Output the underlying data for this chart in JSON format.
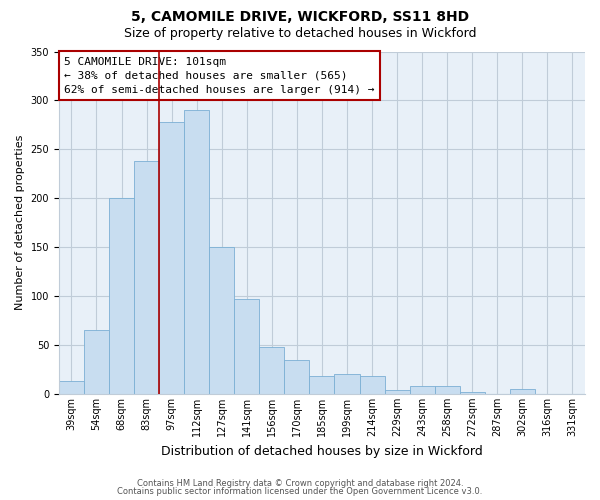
{
  "title": "5, CAMOMILE DRIVE, WICKFORD, SS11 8HD",
  "subtitle": "Size of property relative to detached houses in Wickford",
  "xlabel": "Distribution of detached houses by size in Wickford",
  "ylabel": "Number of detached properties",
  "bar_labels": [
    "39sqm",
    "54sqm",
    "68sqm",
    "83sqm",
    "97sqm",
    "112sqm",
    "127sqm",
    "141sqm",
    "156sqm",
    "170sqm",
    "185sqm",
    "199sqm",
    "214sqm",
    "229sqm",
    "243sqm",
    "258sqm",
    "272sqm",
    "287sqm",
    "302sqm",
    "316sqm",
    "331sqm"
  ],
  "bar_values": [
    13,
    65,
    200,
    238,
    278,
    290,
    150,
    97,
    48,
    35,
    18,
    20,
    18,
    4,
    8,
    8,
    2,
    0,
    5,
    0,
    0
  ],
  "bar_color": "#c8ddf0",
  "bar_edge_color": "#7bafd4",
  "vline_x_index": 4,
  "vline_color": "#aa0000",
  "ylim": [
    0,
    350
  ],
  "yticks": [
    0,
    50,
    100,
    150,
    200,
    250,
    300,
    350
  ],
  "annotation_line1": "5 CAMOMILE DRIVE: 101sqm",
  "annotation_line2": "← 38% of detached houses are smaller (565)",
  "annotation_line3": "62% of semi-detached houses are larger (914) →",
  "footer1": "Contains HM Land Registry data © Crown copyright and database right 2024.",
  "footer2": "Contains public sector information licensed under the Open Government Licence v3.0.",
  "background_color": "#ffffff",
  "plot_bg_color": "#e8f0f8",
  "grid_color": "#c0ccd8",
  "title_fontsize": 10,
  "subtitle_fontsize": 9,
  "annotation_fontsize": 8,
  "ylabel_fontsize": 8,
  "xlabel_fontsize": 9,
  "tick_fontsize": 7
}
